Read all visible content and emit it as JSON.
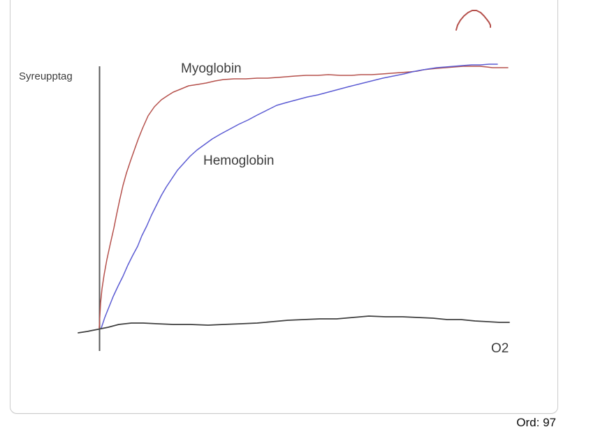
{
  "footer": {
    "word_count": "Ord: 97"
  },
  "colors": {
    "frame_border": "#cccccc",
    "axis": "#5a5a5a",
    "label_text": "#3c3c3c",
    "myoglobin_red": "#b5504b",
    "hemoglobin_blue": "#5b5bd3",
    "baseline_black": "#3f3f3f"
  },
  "chart_data": {
    "type": "line",
    "title": "",
    "ylabel": "Syreupptag",
    "xlabel": "O2",
    "series_labels": {
      "myoglobin": "Myoglobin",
      "hemoglobin": "Hemoglobin"
    },
    "axes_unlabeled": true,
    "grid": false,
    "legend_position": "inline-annotations",
    "description": "Hand-drawn oxygen saturation curves: hyperbolic Myoglobin curve (red) and sigmoidal Hemoglobin curve (blue) over O2 partial pressure; both plateau at the same maximum. Black hand-drawn x-baseline. A stray red arc mark sits at the top right of the canvas.",
    "y_axis_line": {
      "x": 142.5,
      "y_top": 95,
      "y_bottom": 503,
      "width": 2
    },
    "series": [
      {
        "id": "myoglobin-curve",
        "name": "Myoglobin",
        "color": "#b5504b",
        "width": 1.5,
        "points": [
          [
            142,
            470
          ],
          [
            143,
            452
          ],
          [
            144,
            434
          ],
          [
            146,
            414
          ],
          [
            149,
            394
          ],
          [
            153,
            372
          ],
          [
            158,
            349
          ],
          [
            163,
            327
          ],
          [
            167,
            307
          ],
          [
            171,
            288
          ],
          [
            176,
            266
          ],
          [
            181,
            248
          ],
          [
            187,
            230
          ],
          [
            193,
            213
          ],
          [
            198,
            199
          ],
          [
            204,
            184
          ],
          [
            212,
            166
          ],
          [
            221,
            153
          ],
          [
            231,
            143
          ],
          [
            240,
            137
          ],
          [
            248,
            132
          ],
          [
            258,
            128
          ],
          [
            270,
            123
          ],
          [
            283,
            121
          ],
          [
            295,
            119
          ],
          [
            308,
            116
          ],
          [
            320,
            114
          ],
          [
            335,
            113
          ],
          [
            352,
            113
          ],
          [
            368,
            112
          ],
          [
            383,
            112
          ],
          [
            397,
            111
          ],
          [
            410,
            110
          ],
          [
            422,
            109
          ],
          [
            438,
            108
          ],
          [
            455,
            108
          ],
          [
            470,
            107
          ],
          [
            487,
            108
          ],
          [
            503,
            108
          ],
          [
            517,
            107
          ],
          [
            532,
            107
          ],
          [
            547,
            106
          ],
          [
            560,
            105
          ],
          [
            574,
            104
          ],
          [
            587,
            103
          ],
          [
            597,
            102
          ],
          [
            606,
            100
          ],
          [
            615,
            99
          ],
          [
            625,
            98
          ],
          [
            638,
            97
          ],
          [
            650,
            96
          ],
          [
            663,
            95
          ],
          [
            675,
            95
          ],
          [
            687,
            95
          ],
          [
            697,
            96
          ],
          [
            705,
            97
          ],
          [
            714,
            97
          ],
          [
            727,
            97
          ]
        ]
      },
      {
        "id": "hemoglobin-curve",
        "name": "Hemoglobin",
        "color": "#5b5bd3",
        "width": 1.5,
        "points": [
          [
            145,
            470
          ],
          [
            150,
            455
          ],
          [
            156,
            440
          ],
          [
            162,
            425
          ],
          [
            169,
            410
          ],
          [
            176,
            396
          ],
          [
            183,
            380
          ],
          [
            190,
            366
          ],
          [
            197,
            353
          ],
          [
            203,
            338
          ],
          [
            210,
            324
          ],
          [
            217,
            308
          ],
          [
            224,
            294
          ],
          [
            231,
            280
          ],
          [
            238,
            268
          ],
          [
            246,
            256
          ],
          [
            254,
            244
          ],
          [
            263,
            234
          ],
          [
            272,
            224
          ],
          [
            282,
            215
          ],
          [
            293,
            207
          ],
          [
            304,
            199
          ],
          [
            316,
            192
          ],
          [
            329,
            185
          ],
          [
            342,
            178
          ],
          [
            355,
            172
          ],
          [
            368,
            165
          ],
          [
            382,
            158
          ],
          [
            396,
            151
          ],
          [
            410,
            147
          ],
          [
            425,
            143
          ],
          [
            440,
            139
          ],
          [
            455,
            136
          ],
          [
            470,
            132
          ],
          [
            485,
            128
          ],
          [
            500,
            124
          ],
          [
            516,
            120
          ],
          [
            532,
            116
          ],
          [
            548,
            112
          ],
          [
            563,
            109
          ],
          [
            578,
            106
          ],
          [
            590,
            103
          ],
          [
            600,
            101
          ],
          [
            612,
            99
          ],
          [
            625,
            97
          ],
          [
            638,
            96
          ],
          [
            650,
            95
          ],
          [
            662,
            94
          ],
          [
            675,
            93
          ],
          [
            688,
            93
          ],
          [
            700,
            92
          ],
          [
            712,
            92
          ]
        ]
      },
      {
        "id": "x-baseline",
        "name": "baseline",
        "color": "#3f3f3f",
        "width": 1.8,
        "points": [
          [
            112,
            477
          ],
          [
            125,
            475
          ],
          [
            140,
            472
          ],
          [
            155,
            469
          ],
          [
            170,
            465
          ],
          [
            188,
            463
          ],
          [
            205,
            463
          ],
          [
            225,
            464
          ],
          [
            248,
            465
          ],
          [
            272,
            465
          ],
          [
            298,
            466
          ],
          [
            320,
            465
          ],
          [
            345,
            464
          ],
          [
            368,
            463
          ],
          [
            390,
            461
          ],
          [
            412,
            459
          ],
          [
            435,
            458
          ],
          [
            458,
            457
          ],
          [
            482,
            457
          ],
          [
            505,
            455
          ],
          [
            528,
            453
          ],
          [
            552,
            454
          ],
          [
            576,
            454
          ],
          [
            598,
            455
          ],
          [
            620,
            456
          ],
          [
            640,
            458
          ],
          [
            660,
            458
          ],
          [
            680,
            460
          ],
          [
            698,
            461
          ],
          [
            715,
            462
          ],
          [
            729,
            462
          ]
        ]
      },
      {
        "id": "stray-red-mark",
        "name": "stray mark",
        "color": "#b5504b",
        "width": 2,
        "points": [
          [
            653,
            43
          ],
          [
            655,
            36
          ],
          [
            659,
            29
          ],
          [
            664,
            23
          ],
          [
            670,
            18
          ],
          [
            676,
            15
          ],
          [
            682,
            15
          ],
          [
            688,
            18
          ],
          [
            693,
            23
          ],
          [
            697,
            28
          ],
          [
            700,
            32
          ],
          [
            702,
            36
          ],
          [
            702,
            39
          ]
        ]
      }
    ]
  }
}
